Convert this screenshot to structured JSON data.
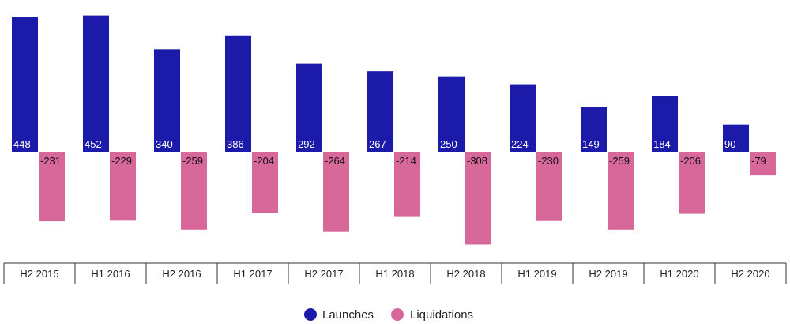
{
  "chart_data": {
    "type": "bar",
    "categories": [
      "H2 2015",
      "H1 2016",
      "H2 2016",
      "H1 2017",
      "H2 2017",
      "H1 2018",
      "H2 2018",
      "H1 2019",
      "H2 2019",
      "H1 2020",
      "H2 2020"
    ],
    "series": [
      {
        "name": "Launches",
        "values": [
          448,
          452,
          340,
          386,
          292,
          267,
          250,
          224,
          149,
          184,
          90
        ],
        "color": "#1c1aa8"
      },
      {
        "name": "Liquidations",
        "values": [
          -231,
          -229,
          -259,
          -204,
          -264,
          -214,
          -308,
          -230,
          -259,
          -206,
          -79
        ],
        "color": "#d9689a"
      }
    ],
    "legend": {
      "position": "bottom-center"
    },
    "grid": false,
    "ylim": [
      -360,
      460
    ]
  }
}
